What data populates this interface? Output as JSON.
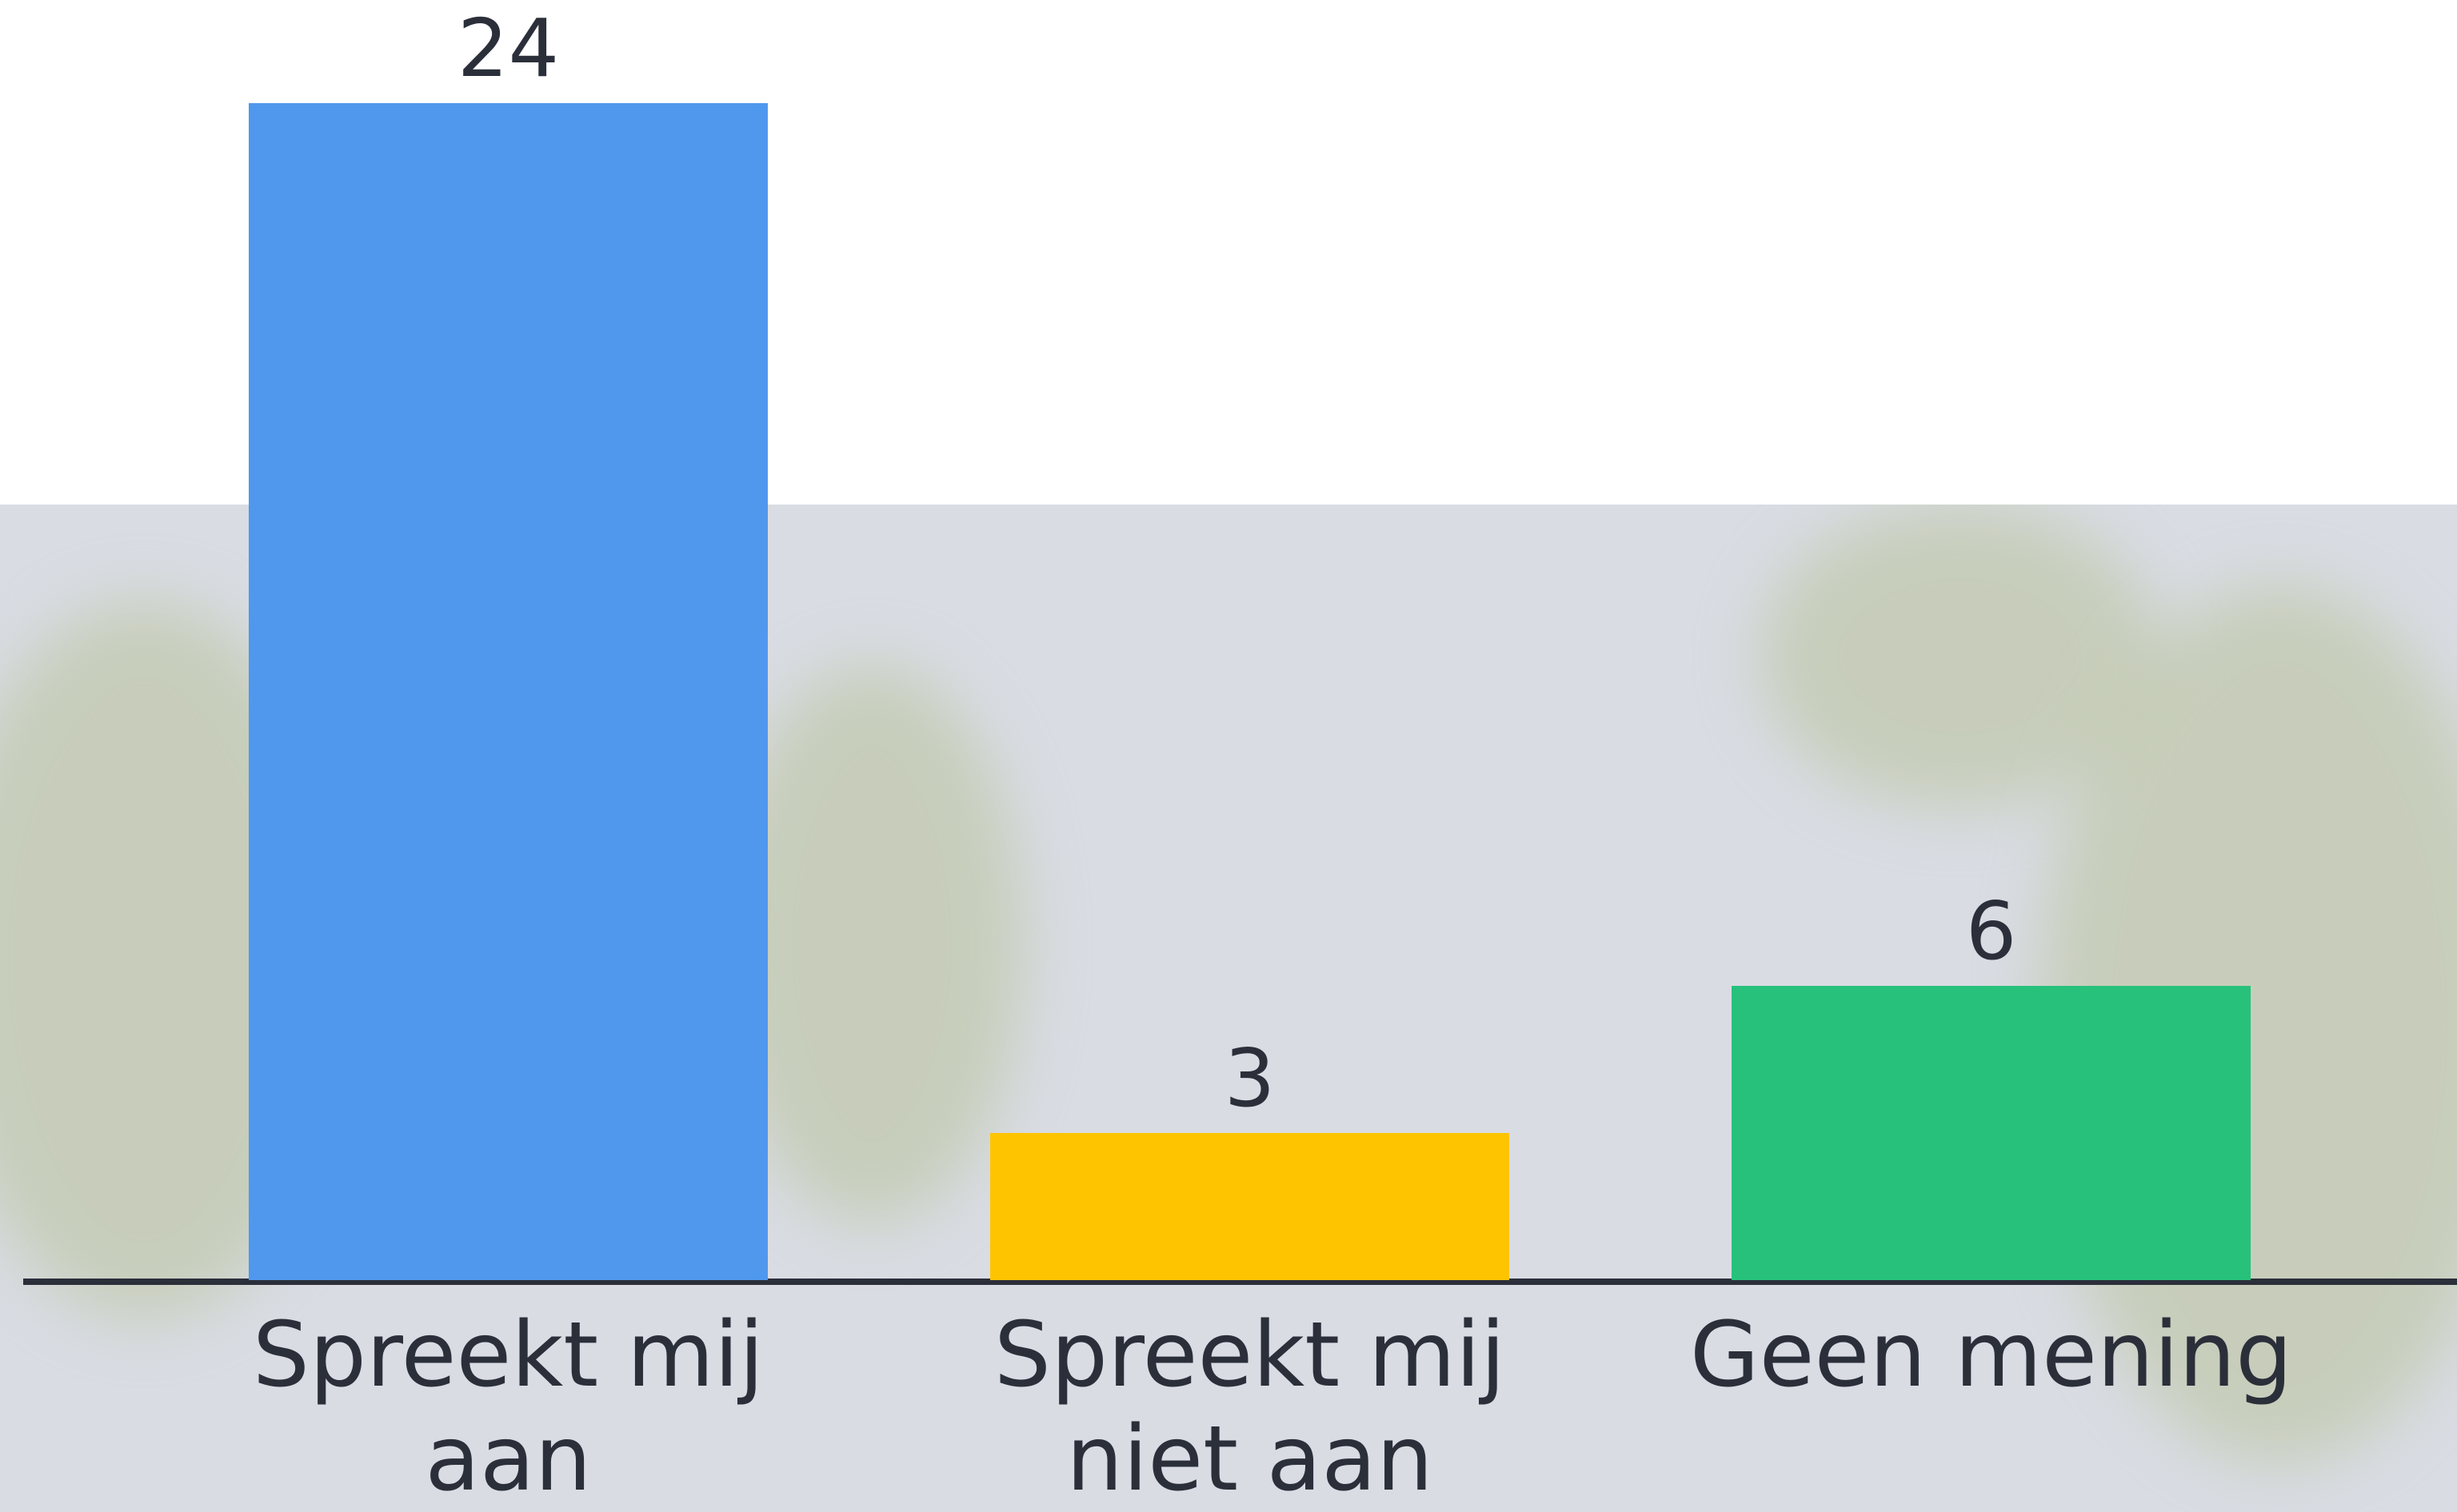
{
  "chart_data": {
    "type": "bar",
    "categories": [
      "Spreekt mij aan",
      "Spreekt mij niet aan",
      "Geen mening"
    ],
    "values": [
      24,
      3,
      6
    ],
    "colors": [
      "#4f98ee",
      "#ffc400",
      "#27c17c"
    ]
  }
}
